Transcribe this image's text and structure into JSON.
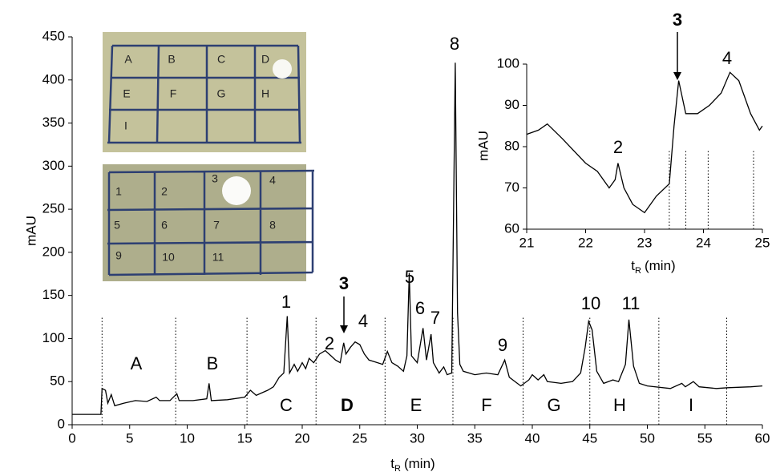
{
  "chart_data": [
    {
      "type": "line",
      "ylabel": "mAU",
      "xlabel": {
        "main": "t",
        "sub": "R",
        "unit": "(min)"
      },
      "xlim": [
        0,
        60
      ],
      "xticks": [
        0,
        5,
        10,
        15,
        20,
        25,
        30,
        35,
        40,
        45,
        50,
        55,
        60
      ],
      "ylim": [
        0,
        450
      ],
      "yticks": [
        0,
        50,
        100,
        150,
        200,
        250,
        300,
        350,
        400,
        450
      ],
      "color": "#000000",
      "x": [
        0,
        2.5,
        2.6,
        2.9,
        3.1,
        3.4,
        3.7,
        4.5,
        5.5,
        6.5,
        7.3,
        7.6,
        8.5,
        9.1,
        9.3,
        10.5,
        11.7,
        11.9,
        12.1,
        13.5,
        15,
        15.5,
        16,
        17,
        17.5,
        18,
        18.4,
        18.7,
        18.9,
        19.3,
        19.6,
        20,
        20.3,
        20.6,
        21,
        21.5,
        22,
        22.5,
        22.9,
        23.3,
        23.6,
        23.8,
        24.2,
        24.6,
        25,
        25.4,
        25.8,
        26.3,
        27,
        27.4,
        27.8,
        28.3,
        28.8,
        29.1,
        29.3,
        29.5,
        30,
        30.5,
        30.8,
        31.2,
        31.4,
        31.9,
        32.3,
        32.6,
        33,
        33.3,
        33.5,
        33.7,
        34,
        35,
        36,
        37,
        37.6,
        38,
        39,
        39.7,
        40,
        40.5,
        41,
        41.3,
        42.5,
        43.5,
        44.2,
        44.6,
        44.9,
        45.2,
        45.6,
        46.2,
        47,
        47.5,
        48.1,
        48.4,
        48.8,
        49.3,
        50,
        52,
        53,
        53.3,
        54,
        54.5,
        56,
        57,
        59,
        60
      ],
      "y": [
        12,
        12,
        42,
        40,
        25,
        35,
        22,
        25,
        28,
        27,
        32,
        28,
        28,
        36,
        28,
        28,
        30,
        48,
        28,
        29,
        32,
        40,
        34,
        40,
        44,
        55,
        60,
        126,
        60,
        70,
        62,
        72,
        65,
        77,
        72,
        82,
        86,
        80,
        75,
        72,
        95,
        82,
        90,
        96,
        93,
        82,
        75,
        73,
        70,
        85,
        72,
        68,
        62,
        80,
        176,
        80,
        72,
        112,
        75,
        105,
        72,
        60,
        67,
        58,
        60,
        420,
        130,
        70,
        62,
        58,
        60,
        58,
        75,
        55,
        45,
        52,
        58,
        52,
        58,
        50,
        48,
        50,
        60,
        90,
        120,
        110,
        62,
        48,
        52,
        50,
        70,
        122,
        68,
        48,
        45,
        42,
        48,
        44,
        50,
        44,
        42,
        43,
        44,
        45
      ],
      "fraction_bounds": [
        2.6,
        9,
        15.2,
        21.2,
        27.2,
        33.1,
        39.2,
        45,
        51,
        56.9
      ],
      "fraction_labels": [
        {
          "text": "A",
          "color": "#000000"
        },
        {
          "text": "B",
          "color": "#000000"
        },
        {
          "text": "C",
          "color": "#000000"
        },
        {
          "text": "D",
          "color": "#e0332a"
        },
        {
          "text": "E",
          "color": "#000000"
        },
        {
          "text": "F",
          "color": "#000000"
        },
        {
          "text": "G",
          "color": "#000000"
        },
        {
          "text": "H",
          "color": "#000000"
        },
        {
          "text": "I",
          "color": "#000000"
        }
      ],
      "peak_labels": [
        {
          "text": "1",
          "color": "#000000"
        },
        {
          "text": "2",
          "color": "#000000"
        },
        {
          "text": "3",
          "color": "#e0332a"
        },
        {
          "text": "4",
          "color": "#000000"
        },
        {
          "text": "5",
          "color": "#000000"
        },
        {
          "text": "6",
          "color": "#000000"
        },
        {
          "text": "7",
          "color": "#000000"
        },
        {
          "text": "8",
          "color": "#000000"
        },
        {
          "text": "9",
          "color": "#000000"
        },
        {
          "text": "10",
          "color": "#000000"
        },
        {
          "text": "11",
          "color": "#000000"
        }
      ]
    },
    {
      "type": "line",
      "ylabel": "mAU",
      "xlabel": {
        "main": "t",
        "sub": "R",
        "unit": "(min)"
      },
      "xlim": [
        21,
        25
      ],
      "xticks": [
        21,
        22,
        23,
        24,
        25
      ],
      "ylim": [
        60,
        100
      ],
      "yticks": [
        60,
        70,
        80,
        90,
        100
      ],
      "color": "#000000",
      "x": [
        21,
        21.2,
        21.35,
        21.6,
        22,
        22.2,
        22.4,
        22.5,
        22.55,
        22.65,
        22.8,
        23,
        23.2,
        23.42,
        23.5,
        23.58,
        23.7,
        23.9,
        24.1,
        24.3,
        24.45,
        24.6,
        24.8,
        24.95,
        25
      ],
      "y": [
        83,
        84,
        85.5,
        82,
        76,
        74,
        70,
        72,
        76,
        70,
        66,
        64,
        68,
        71,
        85,
        96,
        88,
        88,
        90,
        93,
        98,
        96,
        88,
        84,
        85
      ],
      "fraction_bounds": [
        23.42,
        23.7,
        24.08,
        24.85
      ],
      "peak_labels": [
        {
          "text": "2",
          "color": "#000000"
        },
        {
          "text": "3",
          "color": "#e0332a"
        },
        {
          "text": "4",
          "color": "#000000"
        }
      ]
    }
  ],
  "photos": [
    {
      "labels": [
        "A",
        "B",
        "C",
        "D",
        "E",
        "F",
        "G",
        "H",
        "I"
      ]
    },
    {
      "labels": [
        "1",
        "2",
        "3",
        "4",
        "5",
        "6",
        "7",
        "8",
        "9",
        "10",
        "11"
      ]
    }
  ]
}
